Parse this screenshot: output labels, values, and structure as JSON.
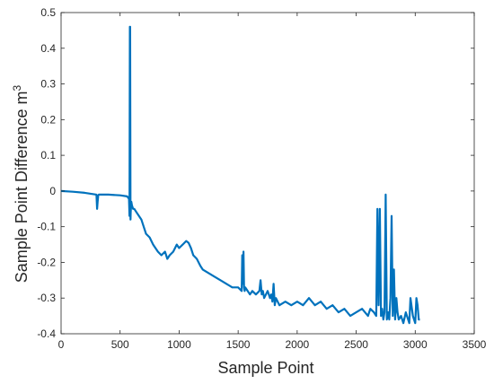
{
  "chart_data": {
    "type": "line",
    "title": "",
    "xlabel": "Sample Point",
    "ylabel": "Sample Point Difference m",
    "ylabel_superscript": "3",
    "xlim": [
      0,
      3500
    ],
    "ylim": [
      -0.4,
      0.5
    ],
    "xticks": [
      "0",
      "500",
      "1000",
      "1500",
      "2000",
      "2500",
      "3000",
      "3500"
    ],
    "yticks": [
      "-0.4",
      "-0.3",
      "-0.2",
      "-0.1",
      "0",
      "0.1",
      "0.2",
      "0.3",
      "0.4",
      "0.5"
    ],
    "grid": false,
    "legend": "none",
    "series": [
      {
        "color": "#0072BD",
        "x": [
          0,
          100,
          200,
          300,
          305,
          310,
          315,
          320,
          400,
          500,
          560,
          570,
          575,
          580,
          583,
          585,
          588,
          590,
          595,
          600,
          610,
          620,
          640,
          680,
          700,
          720,
          750,
          780,
          800,
          820,
          850,
          880,
          900,
          920,
          950,
          980,
          1000,
          1030,
          1060,
          1080,
          1100,
          1120,
          1150,
          1180,
          1200,
          1250,
          1300,
          1350,
          1400,
          1450,
          1500,
          1530,
          1535,
          1540,
          1545,
          1550,
          1555,
          1560,
          1580,
          1600,
          1620,
          1650,
          1680,
          1690,
          1700,
          1710,
          1720,
          1750,
          1770,
          1780,
          1790,
          1800,
          1810,
          1820,
          1850,
          1900,
          1950,
          2000,
          2050,
          2100,
          2150,
          2200,
          2250,
          2300,
          2350,
          2400,
          2450,
          2500,
          2550,
          2600,
          2620,
          2650,
          2670,
          2680,
          2690,
          2700,
          2710,
          2720,
          2730,
          2740,
          2750,
          2755,
          2760,
          2770,
          2780,
          2790,
          2800,
          2810,
          2820,
          2830,
          2840,
          2850,
          2860,
          2880,
          2900,
          2920,
          2940,
          2950,
          2960,
          2980,
          3000,
          3010,
          3020,
          3030,
          3040
        ],
        "y": [
          0.0,
          -0.002,
          -0.005,
          -0.01,
          -0.05,
          -0.03,
          -0.012,
          -0.01,
          -0.01,
          -0.012,
          -0.015,
          -0.02,
          -0.02,
          -0.07,
          0.46,
          0.46,
          -0.08,
          -0.06,
          -0.03,
          -0.04,
          -0.05,
          -0.05,
          -0.06,
          -0.08,
          -0.1,
          -0.12,
          -0.13,
          -0.15,
          -0.16,
          -0.17,
          -0.18,
          -0.17,
          -0.19,
          -0.18,
          -0.17,
          -0.15,
          -0.16,
          -0.15,
          -0.14,
          -0.145,
          -0.16,
          -0.18,
          -0.19,
          -0.21,
          -0.22,
          -0.23,
          -0.24,
          -0.25,
          -0.26,
          -0.27,
          -0.27,
          -0.28,
          -0.18,
          -0.26,
          -0.17,
          -0.27,
          -0.28,
          -0.27,
          -0.28,
          -0.29,
          -0.28,
          -0.29,
          -0.28,
          -0.25,
          -0.29,
          -0.28,
          -0.3,
          -0.28,
          -0.3,
          -0.29,
          -0.31,
          -0.26,
          -0.32,
          -0.3,
          -0.32,
          -0.31,
          -0.32,
          -0.31,
          -0.32,
          -0.3,
          -0.32,
          -0.31,
          -0.33,
          -0.32,
          -0.34,
          -0.33,
          -0.35,
          -0.34,
          -0.33,
          -0.35,
          -0.33,
          -0.34,
          -0.35,
          -0.05,
          -0.32,
          -0.05,
          -0.35,
          -0.33,
          -0.36,
          -0.34,
          -0.01,
          -0.2,
          -0.36,
          -0.34,
          -0.36,
          -0.3,
          -0.07,
          -0.35,
          -0.22,
          -0.36,
          -0.3,
          -0.34,
          -0.36,
          -0.35,
          -0.37,
          -0.34,
          -0.36,
          -0.37,
          -0.3,
          -0.35,
          -0.37,
          -0.3,
          -0.32,
          -0.36,
          -0.36
        ]
      }
    ]
  }
}
